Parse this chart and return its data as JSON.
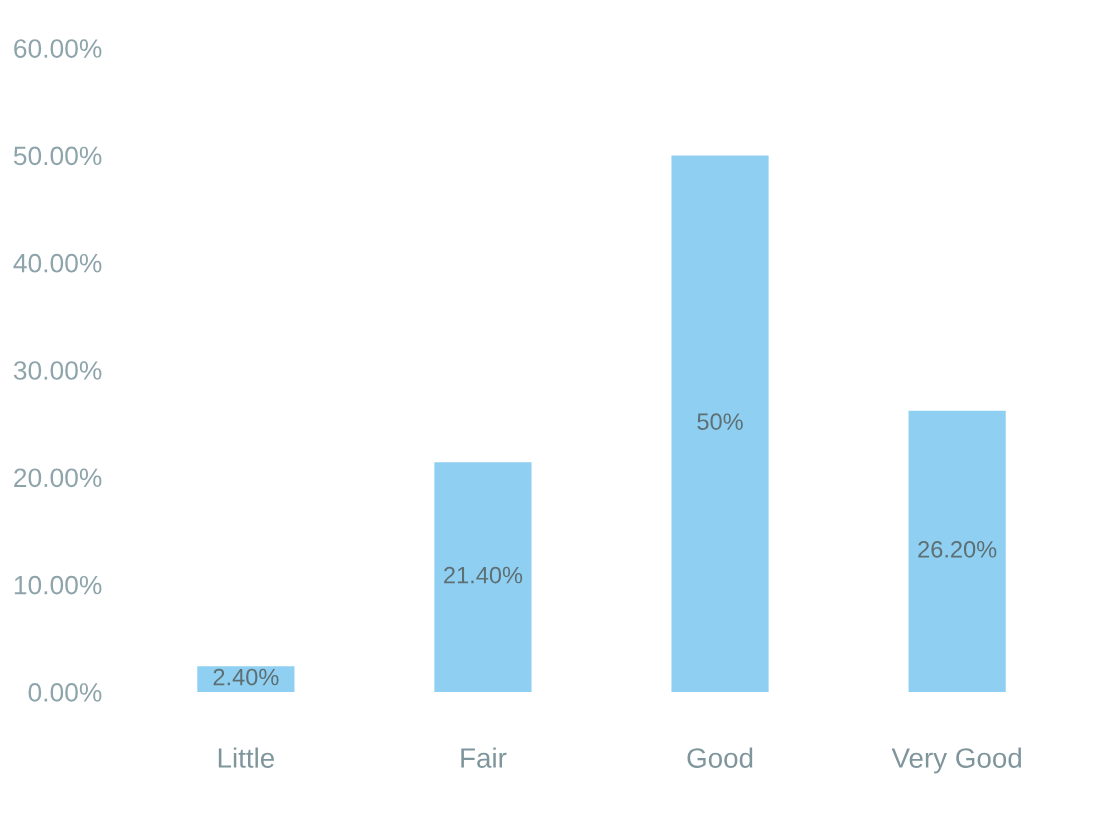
{
  "chart_data": {
    "type": "bar",
    "categories": [
      "Little",
      "Fair",
      "Good",
      "Very Good"
    ],
    "values": [
      2.4,
      21.4,
      50,
      26.2
    ],
    "color": "#8fd0f2",
    "value_labels": [
      "2.40%",
      "21.40%",
      "50%",
      "26.20%"
    ],
    "ylim": [
      0,
      60
    ],
    "yticks": [
      {
        "value": 0,
        "label": "0.00%"
      },
      {
        "value": 10,
        "label": "10.00%"
      },
      {
        "value": 20,
        "label": "20.00%"
      },
      {
        "value": 30,
        "label": "30.00%"
      },
      {
        "value": 40,
        "label": "40.00%"
      },
      {
        "value": 50,
        "label": "50.00%"
      },
      {
        "value": 60,
        "label": "60.00%"
      }
    ],
    "grid": false,
    "legend": false
  }
}
